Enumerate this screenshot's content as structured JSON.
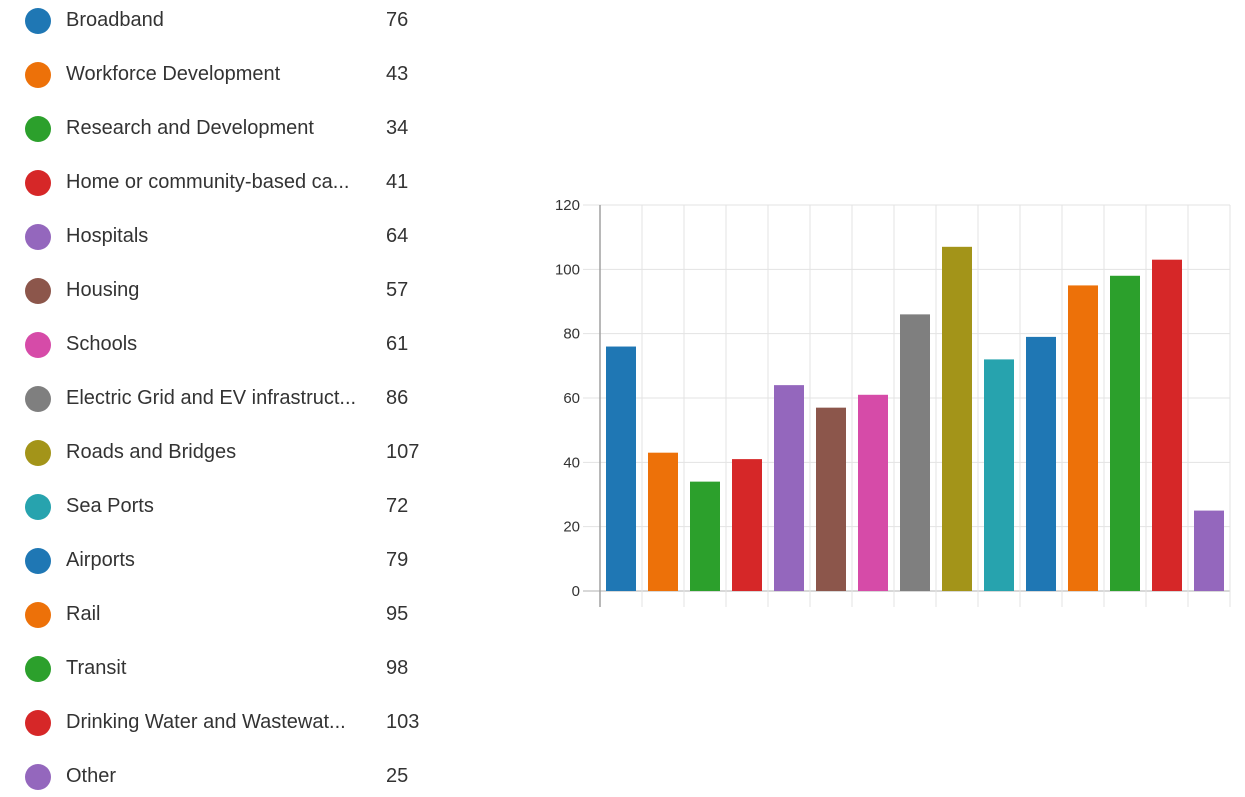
{
  "chart_data": {
    "type": "bar",
    "categories": [
      "Broadband",
      "Workforce Development",
      "Research and Development",
      "Home or community-based ca...",
      "Hospitals",
      "Housing",
      "Schools",
      "Electric Grid and EV infrastruct...",
      "Roads and Bridges",
      "Sea Ports",
      "Airports",
      "Rail",
      "Transit",
      "Drinking Water and Wastewat...",
      "Other"
    ],
    "values": [
      76,
      43,
      34,
      41,
      64,
      57,
      61,
      86,
      107,
      72,
      79,
      95,
      98,
      103,
      25
    ],
    "colors": [
      "#1f77b4",
      "#ed7109",
      "#2ca02c",
      "#d62728",
      "#9467bd",
      "#8c564b",
      "#d64ba8",
      "#7f7f7f",
      "#a39419",
      "#27a3ae",
      "#1f77b4",
      "#ed7109",
      "#2ca02c",
      "#d62728",
      "#9467bd"
    ],
    "ylim": [
      0,
      120
    ],
    "yticks": [
      0,
      20,
      40,
      60,
      80,
      100,
      120
    ],
    "grid": true,
    "legend": "left",
    "title": "",
    "xlabel": "",
    "ylabel": ""
  }
}
